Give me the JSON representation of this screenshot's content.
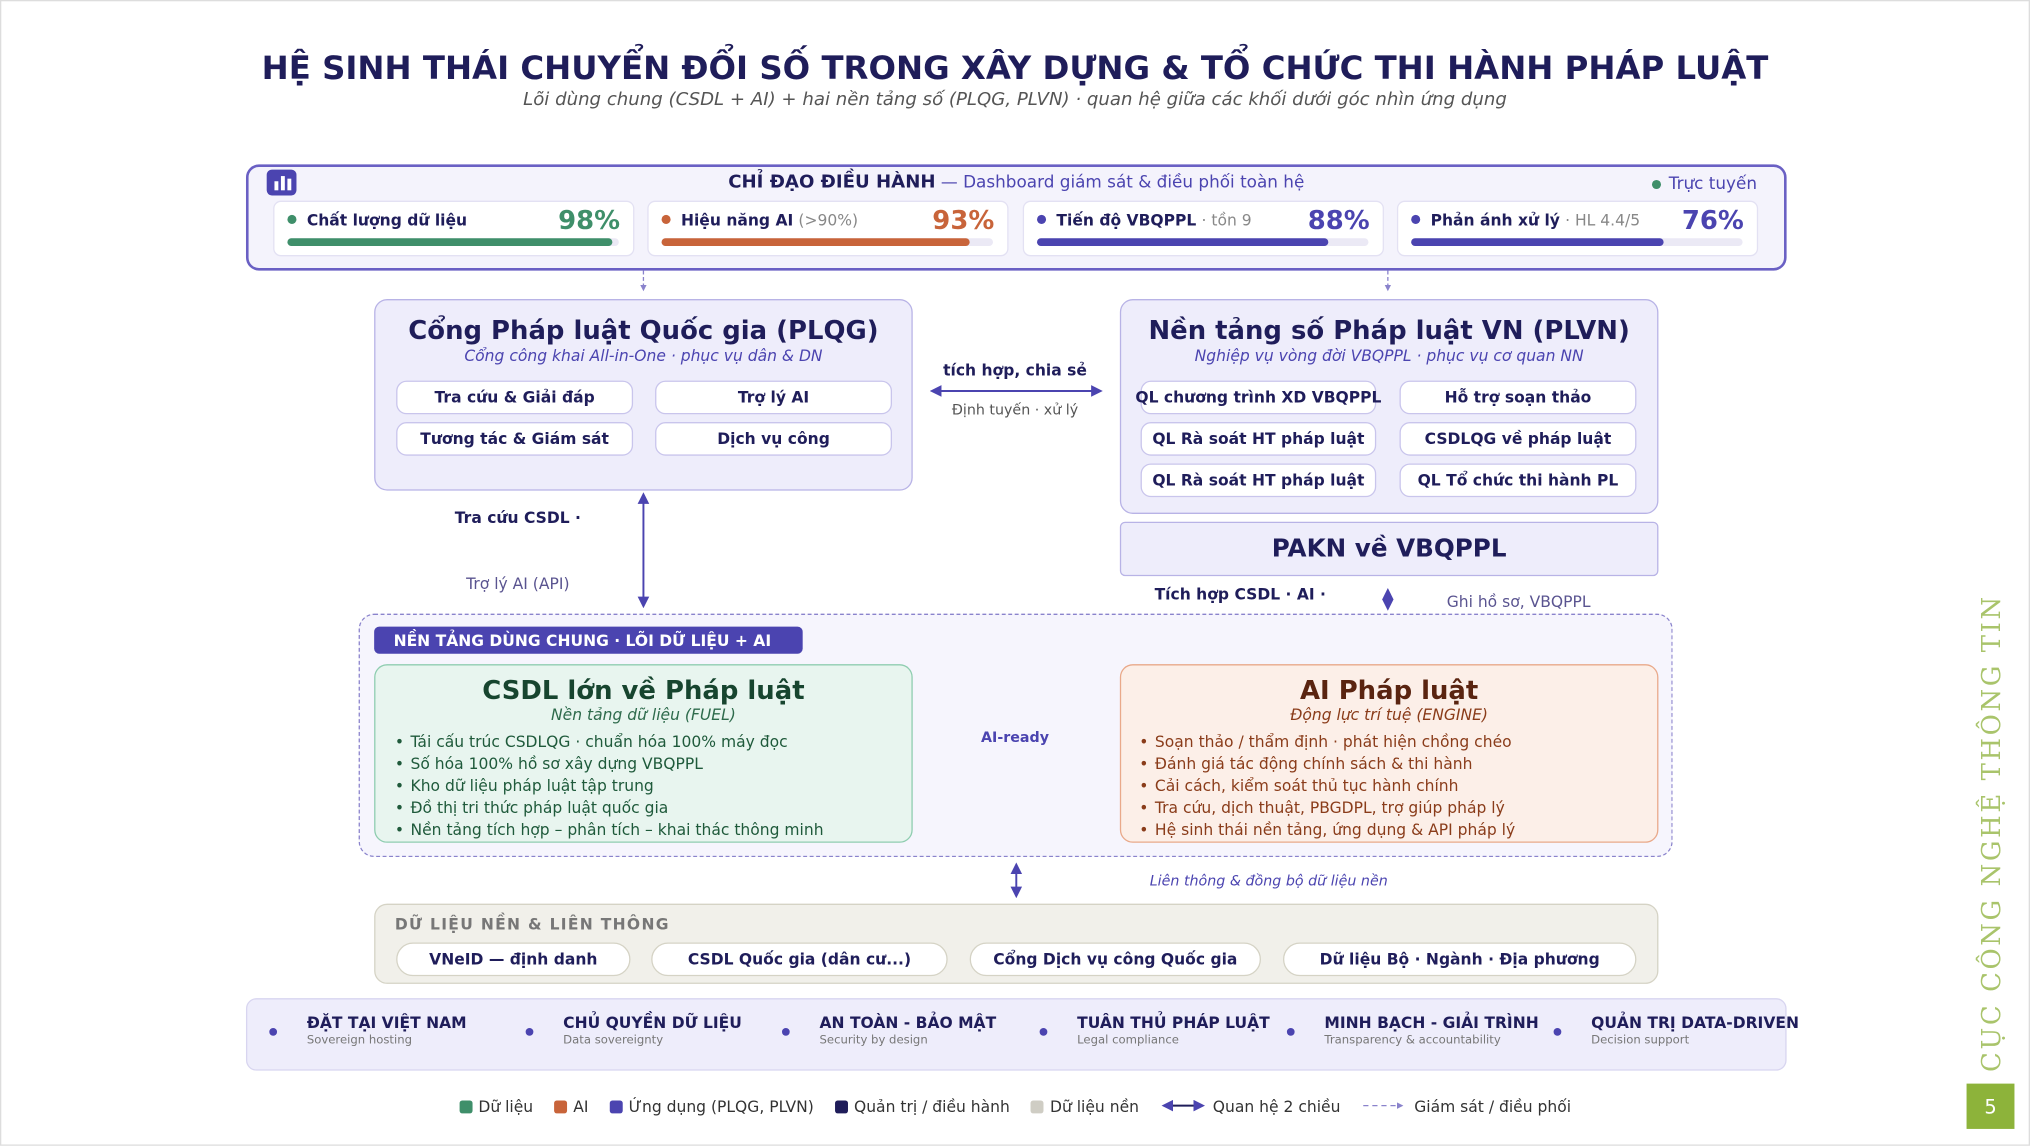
{
  "header": {
    "title": "HỆ SINH THÁI CHUYỂN ĐỔI SỐ TRONG XÂY DỰNG & TỔ CHỨC THI HÀNH PHÁP LUẬT",
    "subtitle": "Lõi dùng chung (CSDL + AI) + hai nền tảng số (PLQG, PLVN) · quan hệ giữa các khối dưới góc nhìn ứng dụng"
  },
  "control": {
    "title": "CHỈ ĐẠO ĐIỀU HÀNH",
    "description": "— Dashboard giám sát & điều phối toàn hệ",
    "status": "Trực tuyến",
    "kpis": [
      {
        "label": "Chất lượng dữ liệu",
        "value": 98,
        "value_label": "98%",
        "color": "#3f8f6a"
      },
      {
        "label": "Hiệu năng AI",
        "note": "(>90%)",
        "value": 93,
        "value_label": "93%",
        "color": "#c8643a"
      },
      {
        "label": "Tiến độ VBQPPL",
        "note": "· tồn 9",
        "value": 88,
        "value_label": "88%",
        "color": "#4b44b0"
      },
      {
        "label": "Phản ánh xử lý",
        "note": "· HL 4.4/5",
        "value": 76,
        "value_label": "76%",
        "color": "#4b44b0"
      }
    ]
  },
  "plqg": {
    "title": "Cổng Pháp luật Quốc gia (PLQG)",
    "subtitle": "Cổng công khai All-in-One · phục vụ dân & DN",
    "items": [
      "Tra cứu & Giải đáp",
      "Trợ lý AI",
      "Tương tác & Giám sát",
      "Dịch vụ công"
    ]
  },
  "link_top": {
    "label": "tích hợp, chia sẻ",
    "sublabel": "Định tuyến · xử lý"
  },
  "plvn": {
    "title": "Nền tảng số Pháp luật VN (PLVN)",
    "subtitle": "Nghiệp vụ vòng đời VBQPPL · phục vụ cơ quan NN",
    "items": [
      "QL chương trình XD VBQPPL",
      "Hỗ trợ soạn thảo",
      "QL Rà soát HT pháp luật",
      "CSDLQG về pháp luật",
      "QL Rà soát HT pháp luật",
      "QL Tổ chức thi hành PL"
    ]
  },
  "pakn": "PAKN về VBQPPL",
  "link_left": {
    "label": "Tra cứu CSDL ·",
    "sublabel": "Trợ lý AI (API)"
  },
  "link_right": {
    "label": "Tích hợp CSDL · AI ·",
    "sublabel": "Ghi hồ sơ, VBQPPL"
  },
  "shared": {
    "tag": "NỀN TẢNG DÙNG CHUNG · LÕI DỮ LIỆU + AI",
    "link": "AI-ready",
    "csdl": {
      "title": "CSDL lớn về Pháp luật",
      "subtitle": "Nền tảng dữ liệu (FUEL)",
      "bullets": [
        "Tái cấu trúc CSDLQG · chuẩn hóa 100% máy đọc",
        "Số hóa 100% hồ sơ xây dựng VBQPPL",
        "Kho dữ liệu pháp luật tập trung",
        "Đồ thị tri thức pháp luật quốc gia",
        "Nền tảng tích hợp – phân tích – khai thác thông minh"
      ]
    },
    "ai": {
      "title": "AI Pháp luật",
      "subtitle": "Động lực trí tuệ (ENGINE)",
      "bullets": [
        "Soạn thảo / thẩm định · phát hiện chồng chéo",
        "Đánh giá tác động chính sách & thi hành",
        "Cải cách, kiểm soát thủ tục hành chính",
        "Tra cứu, dịch thuật, PBGDPL, trợ giúp pháp lý",
        "Hệ sinh thái nền tảng, ứng dụng & API pháp lý"
      ]
    }
  },
  "sync_label": "Liên thông & đồng bộ dữ liệu nền",
  "base": {
    "title": "DỮ LIỆU NỀN & LIÊN THÔNG",
    "items": [
      "VNeID — định danh",
      "CSDL Quốc gia (dân cư...)",
      "Cổng Dịch vụ công Quốc gia",
      "Dữ liệu Bộ · Ngành · Địa phương"
    ]
  },
  "principles": [
    {
      "title": "ĐẶT TẠI VIỆT NAM",
      "subtitle": "Sovereign hosting"
    },
    {
      "title": "CHỦ QUYỀN DỮ LIỆU",
      "subtitle": "Data sovereignty"
    },
    {
      "title": "AN TOÀN - BẢO MẬT",
      "subtitle": "Security by design"
    },
    {
      "title": "TUÂN THỦ PHÁP LUẬT",
      "subtitle": "Legal compliance"
    },
    {
      "title": "MINH BẠCH - GIẢI TRÌNH",
      "subtitle": "Transparency & accountability"
    },
    {
      "title": "QUẢN TRỊ DATA-DRIVEN",
      "subtitle": "Decision support"
    }
  ],
  "legend": [
    {
      "label": "Dữ liệu",
      "color": "#3f8f6a"
    },
    {
      "label": "AI",
      "color": "#c8643a"
    },
    {
      "label": "Ứng dụng (PLQG, PLVN)",
      "color": "#4b44b0"
    },
    {
      "label": "Quản trị / điều hành",
      "color": "#1f1d5a"
    },
    {
      "label": "Dữ liệu nền",
      "color": "#cfcdc4"
    },
    {
      "label": "Quan hệ 2 chiều"
    },
    {
      "label": "Giám sát / điều phối"
    }
  ],
  "side_text": "CỤC CÔNG NGHỆ THÔNG TIN",
  "page_number": "5"
}
